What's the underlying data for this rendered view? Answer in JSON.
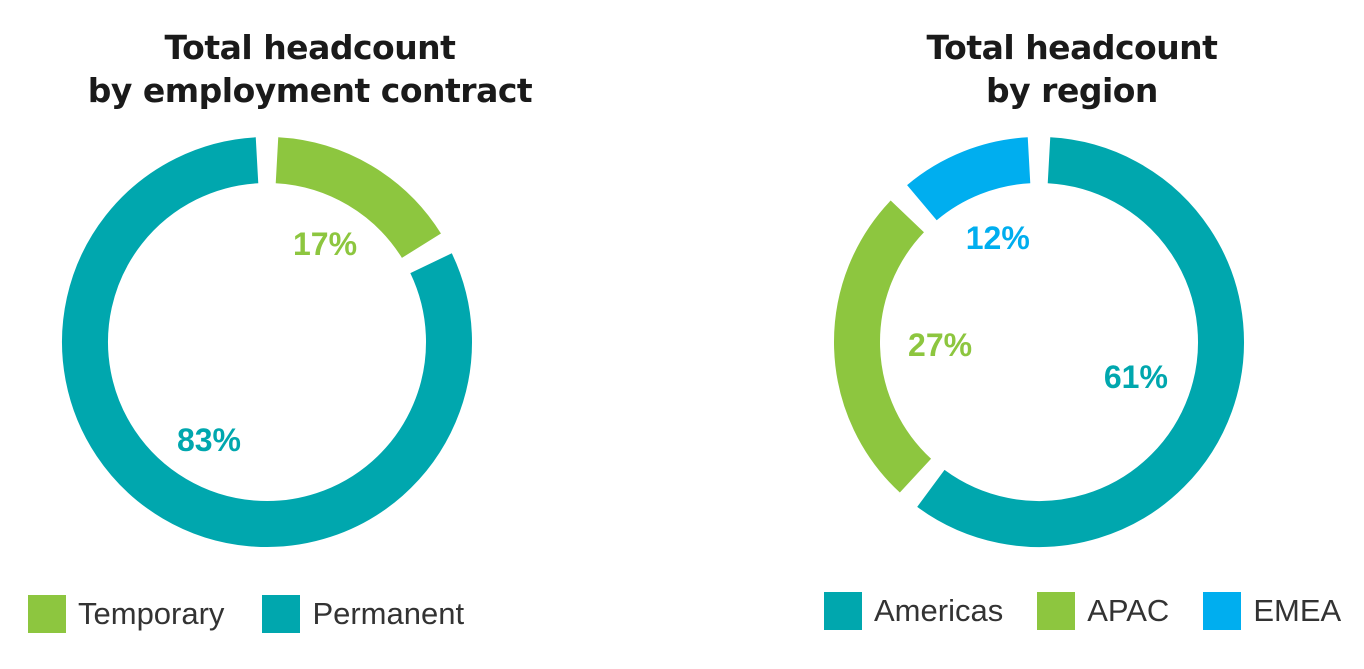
{
  "colors": {
    "teal": "#00A7AE",
    "green": "#8DC63F",
    "blue": "#00AEEF",
    "title_text": "#1a1a1a",
    "legend_text": "#333333"
  },
  "chart_data": [
    {
      "type": "pie",
      "variant": "donut",
      "title": [
        "Total headcount",
        "by employment contract"
      ],
      "categories": [
        "Temporary",
        "Permanent"
      ],
      "values": [
        17,
        83
      ],
      "labels": [
        "17%",
        "83%"
      ],
      "colors": [
        "#8DC63F",
        "#00A7AE"
      ],
      "legend": [
        "Temporary",
        "Permanent"
      ],
      "legend_position": "bottom"
    },
    {
      "type": "pie",
      "variant": "donut",
      "title": [
        "Total headcount",
        "by region"
      ],
      "categories": [
        "Americas",
        "APAC",
        "EMEA"
      ],
      "values": [
        61,
        27,
        12
      ],
      "labels": [
        "61%",
        "27%",
        "12%"
      ],
      "colors": [
        "#00A7AE",
        "#8DC63F",
        "#00AEEF"
      ],
      "legend": [
        "Americas",
        "APAC",
        "EMEA"
      ],
      "legend_position": "bottom"
    }
  ]
}
